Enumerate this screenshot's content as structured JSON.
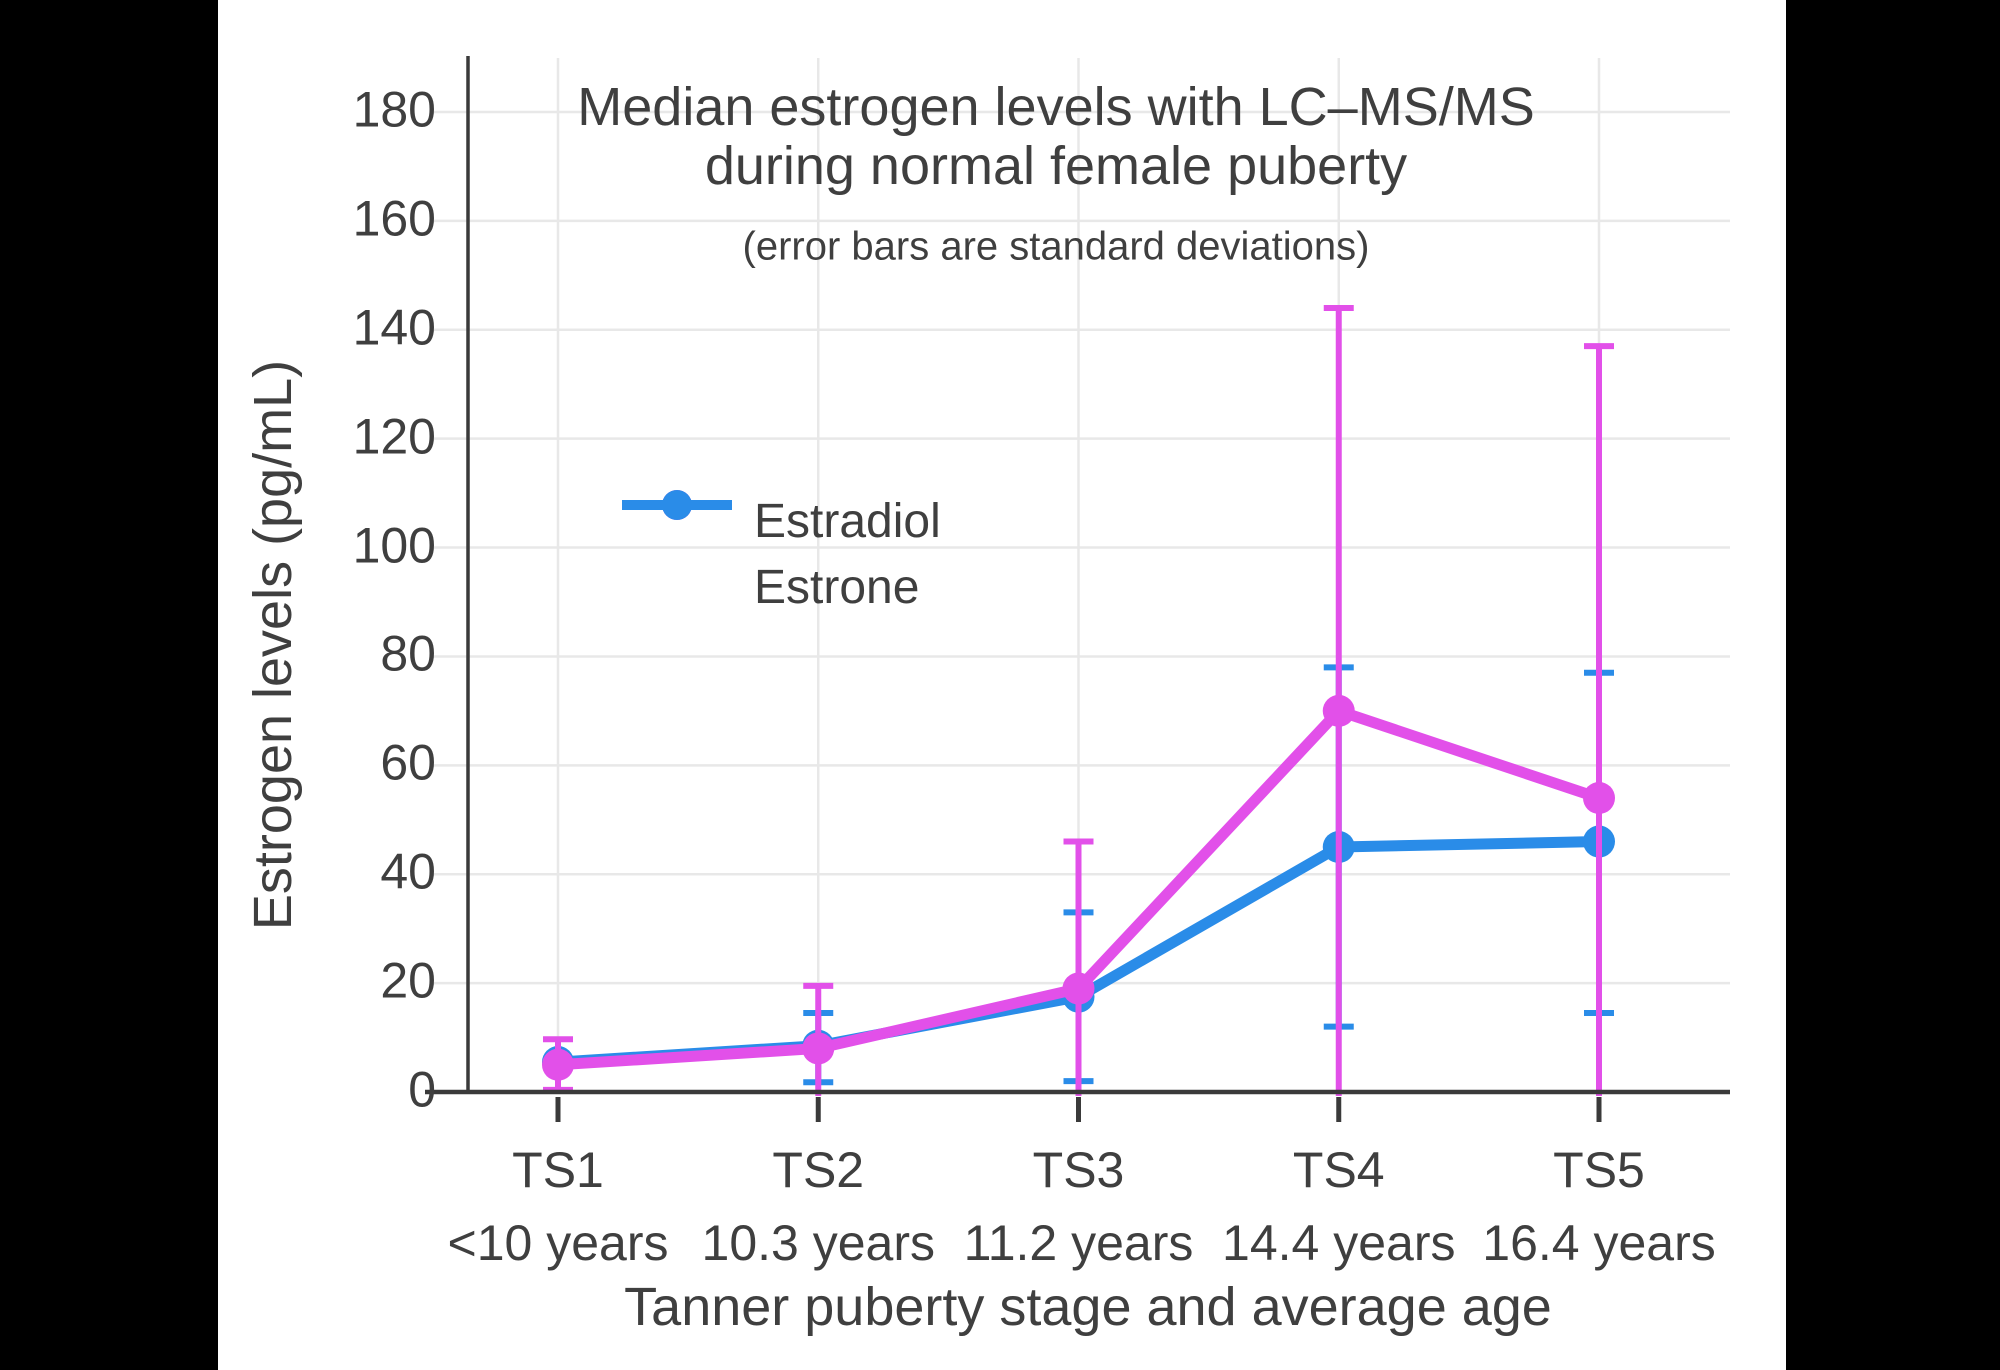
{
  "window": {
    "background_color": "#000000",
    "canvas_color": "#FFFFFF"
  },
  "chart_data": {
    "type": "line",
    "title_line1": "Median estrogen levels with LC–MS/MS",
    "title_line2": "during normal female puberty",
    "subtitle": "(error bars are standard deviations)",
    "xlabel": "Tanner puberty stage and average age",
    "ylabel": "Estrogen levels (pg/mL)",
    "categories": [
      {
        "stage": "TS1",
        "age": "<10 years"
      },
      {
        "stage": "TS2",
        "age": "10.3 years"
      },
      {
        "stage": "TS3",
        "age": "11.2 years"
      },
      {
        "stage": "TS4",
        "age": "14.4 years"
      },
      {
        "stage": "TS5",
        "age": "16.4 years"
      }
    ],
    "y_ticks": [
      0,
      20,
      40,
      60,
      80,
      100,
      120,
      140,
      160,
      180
    ],
    "ylim": [
      0,
      190
    ],
    "grid": true,
    "legend_position": "inside-upper-left",
    "units": "pg/mL",
    "series": [
      {
        "name": "Estradiol",
        "color": "#E250E9",
        "values": [
          5,
          8,
          19,
          70,
          54
        ],
        "error_high": [
          9.7,
          19.5,
          46,
          144,
          137
        ],
        "error_low": [
          0.4,
          0,
          0,
          0,
          0
        ],
        "error_low_clipped": [
          false,
          true,
          true,
          true,
          true
        ]
      },
      {
        "name": "Estrone",
        "color": "#2A8CE8",
        "values": [
          5.5,
          8.5,
          17.5,
          45,
          46
        ],
        "error_high": [
          null,
          14.5,
          33,
          78,
          77
        ],
        "error_low": [
          null,
          1.8,
          2,
          12,
          14.5
        ],
        "error_low_clipped": [
          false,
          false,
          false,
          false,
          false
        ]
      }
    ],
    "colors": {
      "text": "#3F3F3F",
      "axis": "#3A3A3A",
      "grid": "#E8E8E8"
    }
  }
}
